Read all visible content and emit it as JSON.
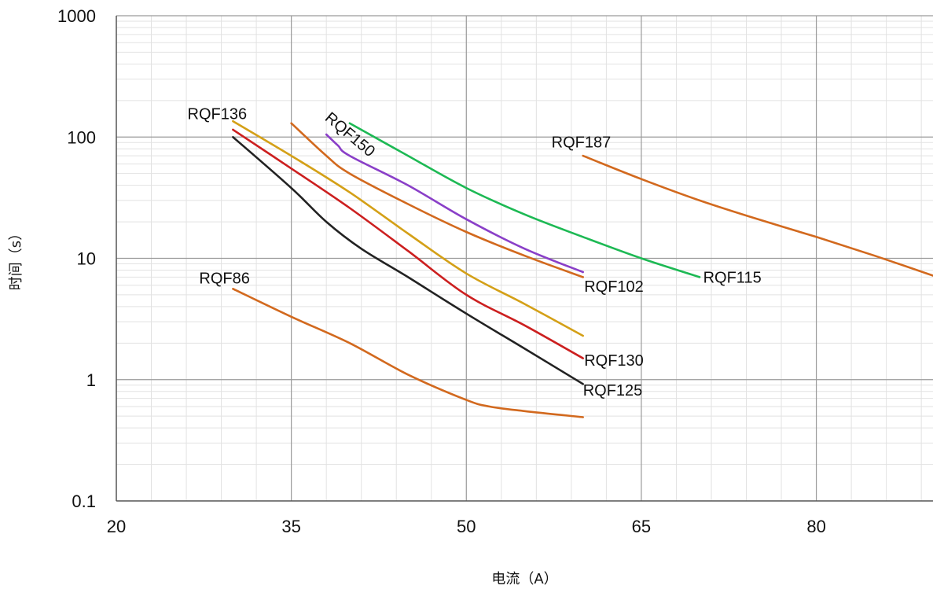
{
  "chart_data": {
    "type": "line",
    "title": "",
    "xlabel": "电流（A）",
    "ylabel": "时间（s）",
    "x_scale": "linear",
    "y_scale": "log",
    "xlim": [
      20,
      90
    ],
    "ylim": [
      0.1,
      1000
    ],
    "x_ticks": [
      "20",
      "35",
      "50",
      "65",
      "80"
    ],
    "y_ticks": [
      "0.1",
      "1",
      "10",
      "100",
      "1000"
    ],
    "grid": true,
    "legend": "none",
    "series": [
      {
        "name": "RQF86",
        "color": "#d2691e",
        "points": [
          [
            30,
            5.6
          ],
          [
            35,
            3.3
          ],
          [
            40,
            2.0
          ],
          [
            45,
            1.1
          ],
          [
            50,
            0.68
          ],
          [
            52,
            0.6
          ],
          [
            55,
            0.55
          ],
          [
            60,
            0.49
          ]
        ]
      },
      {
        "name": "RQF125",
        "color": "#222222",
        "points": [
          [
            30,
            100
          ],
          [
            35,
            38
          ],
          [
            38,
            20
          ],
          [
            41,
            12
          ],
          [
            45,
            7.0
          ],
          [
            50,
            3.5
          ],
          [
            55,
            1.8
          ],
          [
            60,
            0.92
          ]
        ]
      },
      {
        "name": "RQF130",
        "color": "#cc1f1f",
        "points": [
          [
            30,
            115
          ],
          [
            35,
            55
          ],
          [
            40,
            26
          ],
          [
            45,
            11.5
          ],
          [
            50,
            5.0
          ],
          [
            55,
            2.8
          ],
          [
            60,
            1.5
          ]
        ]
      },
      {
        "name": "RQF136",
        "color": "#d4a017",
        "points": [
          [
            30,
            135
          ],
          [
            35,
            70
          ],
          [
            40,
            35
          ],
          [
            45,
            16
          ],
          [
            50,
            7.5
          ],
          [
            55,
            4.2
          ],
          [
            60,
            2.3
          ]
        ]
      },
      {
        "name": "RQF102",
        "color": "#d2691e",
        "points": [
          [
            35,
            130
          ],
          [
            38,
            70
          ],
          [
            40,
            50
          ],
          [
            45,
            28
          ],
          [
            50,
            16.5
          ],
          [
            55,
            10.5
          ],
          [
            60,
            7.0
          ]
        ]
      },
      {
        "name": "RQF150",
        "color": "#8a3fc8",
        "points": [
          [
            38,
            105
          ],
          [
            39,
            85
          ],
          [
            40,
            70
          ],
          [
            45,
            40
          ],
          [
            50,
            21
          ],
          [
            55,
            12
          ],
          [
            60,
            7.7
          ]
        ]
      },
      {
        "name": "RQF115",
        "color": "#1db954",
        "points": [
          [
            40,
            130
          ],
          [
            45,
            70
          ],
          [
            50,
            38
          ],
          [
            55,
            23
          ],
          [
            60,
            15
          ],
          [
            65,
            10
          ],
          [
            70,
            7.0
          ]
        ]
      },
      {
        "name": "RQF187",
        "color": "#d2691e",
        "points": [
          [
            60,
            70
          ],
          [
            65,
            45
          ],
          [
            70,
            30
          ],
          [
            75,
            21
          ],
          [
            80,
            15
          ],
          [
            85,
            10.5
          ],
          [
            90,
            7.2
          ]
        ]
      }
    ],
    "labels": [
      {
        "text": "RQF136",
        "x": 26.1,
        "y": 140,
        "rotate": 0
      },
      {
        "text": "RQF150",
        "x": 37.8,
        "y": 140,
        "rotate": 40
      },
      {
        "text": "RQF187",
        "x": 57.3,
        "y": 82,
        "rotate": 0
      },
      {
        "text": "RQF86",
        "x": 27.1,
        "y": 6.2,
        "rotate": 0
      },
      {
        "text": "RQF102",
        "x": 60.1,
        "y": 5.3,
        "rotate": 0
      },
      {
        "text": "RQF115",
        "x": 70.3,
        "y": 6.3,
        "rotate": 0
      },
      {
        "text": "RQF130",
        "x": 60.1,
        "y": 1.3,
        "rotate": 0
      },
      {
        "text": "RQF125",
        "x": 60.0,
        "y": 0.74,
        "rotate": 0
      }
    ]
  }
}
